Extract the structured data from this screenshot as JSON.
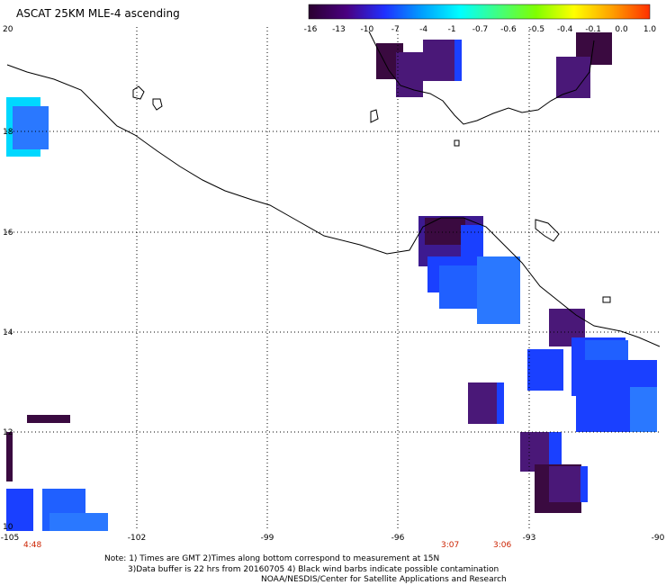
{
  "title": "ASCAT 25KM MLE-4 ascending",
  "colorbar": {
    "labels": [
      "-16",
      "-13",
      "-10",
      "-7",
      "-4",
      "-1",
      "-0.7",
      "-0.6",
      "-0.5",
      "-0.4",
      "-0.1",
      "0.0",
      "1.0"
    ],
    "gradient": [
      "#2a0030",
      "#4a0080",
      "#2030ff",
      "#00a0ff",
      "#00ffff",
      "#40ff80",
      "#80ff00",
      "#ffff00",
      "#ffa000",
      "#ff3000"
    ]
  },
  "lat_labels": [
    "20",
    "18",
    "16",
    "14",
    "12",
    "10"
  ],
  "lon_labels": [
    "-105",
    "-102",
    "-99",
    "-96",
    "-93",
    "-90"
  ],
  "time_labels": [
    "4:48",
    "3:07",
    "3:06"
  ],
  "notes": [
    "Note: 1) Times are GMT 2)Times along bottom correspond to measurement at 15N",
    "3)Data buffer is 22 hrs from 20160705 4) Black wind barbs indicate possible contamination",
    "NOAA/NESDIS/Center for Satellite Applications and Research"
  ],
  "colors": {
    "dark_purple": "#3a0a40",
    "purple": "#4a1878",
    "violet": "#3d1a90",
    "blue": "#1a40ff",
    "mid_blue": "#2060ff",
    "light_blue": "#2a78ff",
    "cyan": "#00d8ff",
    "time_red": "#cc2200"
  }
}
